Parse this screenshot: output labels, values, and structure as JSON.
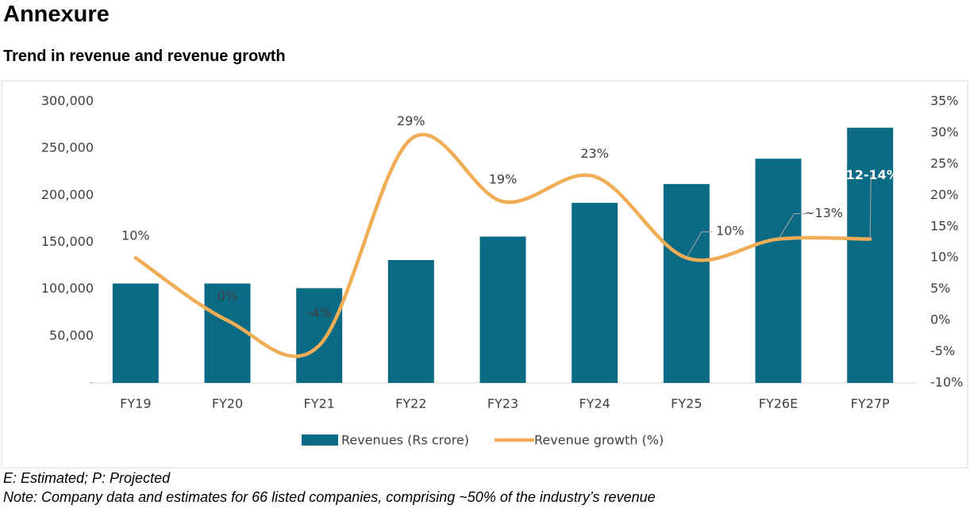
{
  "header": {
    "title": "Annexure"
  },
  "chart_data": {
    "type": "bar",
    "title": "Trend in revenue and revenue growth",
    "categories": [
      "FY19",
      "FY20",
      "FY21",
      "FY22",
      "FY23",
      "FY24",
      "FY25",
      "FY26E",
      "FY27P"
    ],
    "series": [
      {
        "name": "Revenues (Rs crore)",
        "type": "bar",
        "color": "#0b6a84",
        "values": [
          106000,
          106000,
          101000,
          131000,
          156000,
          192000,
          212000,
          239000,
          272000
        ]
      },
      {
        "name": "Revenue growth (%)",
        "type": "line",
        "axis": "y2",
        "color": "#f0ad55",
        "values": [
          10,
          0,
          -4,
          29,
          19,
          23,
          10,
          13,
          13
        ],
        "value_labels": [
          "10%",
          "0%",
          "-4%",
          "29%",
          "19%",
          "23%",
          "10%",
          "~13%",
          "12-14%"
        ]
      }
    ],
    "ylim": [
      0,
      300000
    ],
    "yticks": [
      {
        "value": 0,
        "label": "-"
      },
      {
        "value": 50000,
        "label": "50,000"
      },
      {
        "value": 100000,
        "label": "100,000"
      },
      {
        "value": 150000,
        "label": "150,000"
      },
      {
        "value": 200000,
        "label": "200,000"
      },
      {
        "value": 250000,
        "label": "250,000"
      },
      {
        "value": 300000,
        "label": "300,000"
      }
    ],
    "y2lim": [
      -10,
      35
    ],
    "y2ticks": [
      {
        "value": -10,
        "label": "-10%"
      },
      {
        "value": -5,
        "label": "-5%"
      },
      {
        "value": 0,
        "label": "0%"
      },
      {
        "value": 5,
        "label": "5%"
      },
      {
        "value": 10,
        "label": "10%"
      },
      {
        "value": 15,
        "label": "15%"
      },
      {
        "value": 20,
        "label": "20%"
      },
      {
        "value": 25,
        "label": "25%"
      },
      {
        "value": 30,
        "label": "30%"
      },
      {
        "value": 35,
        "label": "35%"
      }
    ],
    "grid": false,
    "legend": "bottom"
  },
  "notes": [
    "E: Estimated; P: Projected",
    "Note: Company data and estimates for 66 listed companies, comprising ~50% of the industry’s revenue"
  ]
}
